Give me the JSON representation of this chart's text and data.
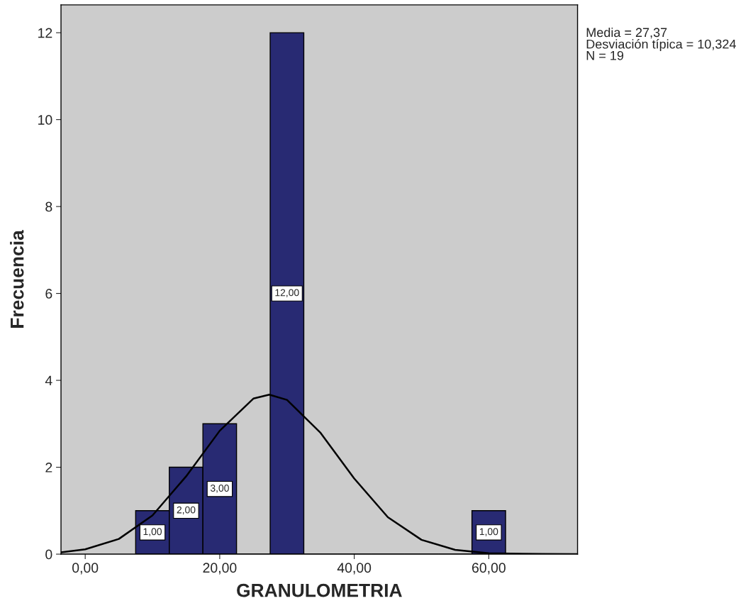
{
  "chart_data": {
    "type": "histogram",
    "xlabel": "GRANULOMETRIA",
    "ylabel": "Frecuencia",
    "annotations": [
      "Media = 27,37",
      "Desviación típica = 10,324",
      "N = 19"
    ],
    "xlim": [
      -3.6,
      73.2
    ],
    "ylim": [
      0,
      12.64
    ],
    "xticks": [
      {
        "value": 0,
        "label": "0,00"
      },
      {
        "value": 20,
        "label": "20,00"
      },
      {
        "value": 40,
        "label": "40,00"
      },
      {
        "value": 60,
        "label": "60,00"
      }
    ],
    "yticks": [
      0,
      2,
      4,
      6,
      8,
      10,
      12
    ],
    "legend": false,
    "series": [
      {
        "color": "#282a73",
        "bins": [
          7.5,
          12.5,
          17.5,
          22.5,
          27.5,
          32.5,
          37.5,
          42.5,
          47.5,
          52.5,
          57.5,
          62.5
        ],
        "values": [
          1,
          2,
          3,
          0,
          12,
          0,
          0,
          0,
          0,
          0,
          1
        ],
        "value_labels": [
          "1,00",
          "2,00",
          "3,00",
          null,
          "12,00",
          null,
          null,
          null,
          null,
          null,
          "1,00"
        ]
      },
      {
        "type": "line",
        "color": "#000000",
        "x": [
          -3.6,
          0,
          5,
          10,
          15,
          20,
          25,
          27.37,
          30,
          35,
          40,
          45,
          50,
          55,
          60,
          65,
          73.2
        ],
        "values": [
          0.04,
          0.11,
          0.35,
          0.89,
          1.79,
          2.84,
          3.58,
          3.67,
          3.55,
          2.79,
          1.74,
          0.85,
          0.33,
          0.1,
          0.02,
          0.01,
          0.0
        ]
      }
    ]
  }
}
